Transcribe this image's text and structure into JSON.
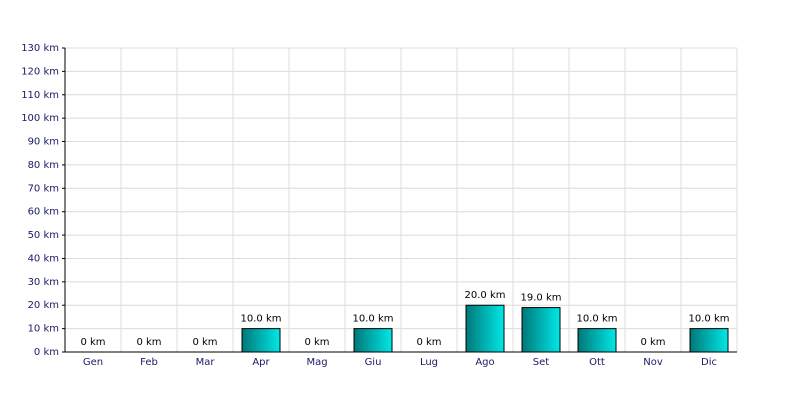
{
  "chart_data": {
    "type": "bar",
    "categories": [
      "Gen",
      "Feb",
      "Mar",
      "Apr",
      "Mag",
      "Giu",
      "Lug",
      "Ago",
      "Set",
      "Ott",
      "Nov",
      "Dic"
    ],
    "values": [
      0,
      0,
      0,
      10,
      0,
      10,
      0,
      20,
      19,
      10,
      0,
      10
    ],
    "value_labels": [
      "0 km",
      "0 km",
      "0 km",
      "10.0 km",
      "0 km",
      "10.0 km",
      "0 km",
      "20.0 km",
      "19.0 km",
      "10.0 km",
      "0 km",
      "10.0 km"
    ],
    "color": "#00e8e8",
    "ylim": [
      0,
      130
    ],
    "yticks": [
      {
        "value": 0,
        "label": "0 km"
      },
      {
        "value": 10,
        "label": "10 km"
      },
      {
        "value": 20,
        "label": "20 km"
      },
      {
        "value": 30,
        "label": "30 km"
      },
      {
        "value": 40,
        "label": "40 km"
      },
      {
        "value": 50,
        "label": "50 km"
      },
      {
        "value": 60,
        "label": "60 km"
      },
      {
        "value": 70,
        "label": "70 km"
      },
      {
        "value": 80,
        "label": "80 km"
      },
      {
        "value": 90,
        "label": "90 km"
      },
      {
        "value": 100,
        "label": "100 km"
      },
      {
        "value": 110,
        "label": "110 km"
      },
      {
        "value": 120,
        "label": "120 km"
      },
      {
        "value": 130,
        "label": "130 km"
      }
    ],
    "grid": true
  }
}
